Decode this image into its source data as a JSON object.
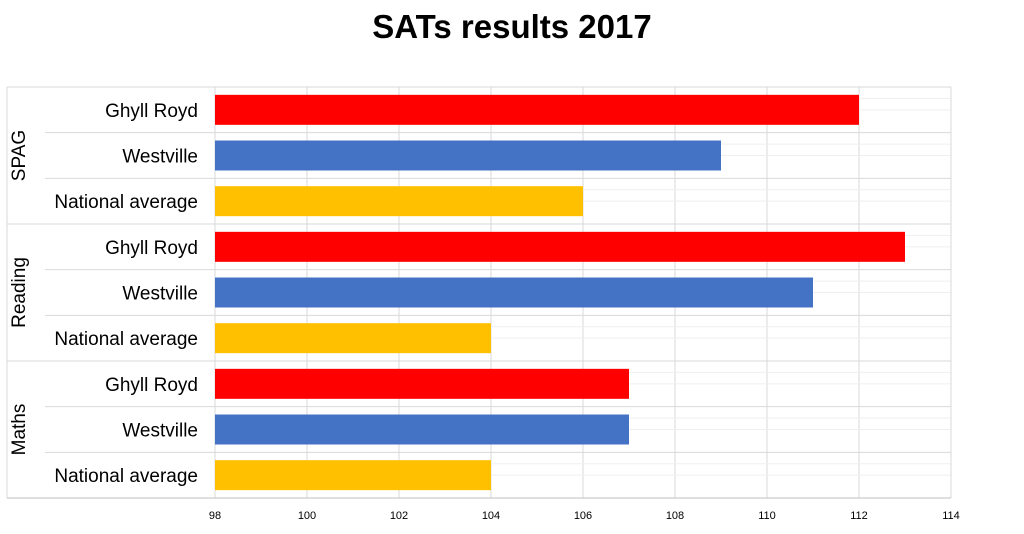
{
  "chart_data": {
    "type": "bar",
    "orientation": "horizontal",
    "title": "SATs results 2017",
    "xlim": [
      98,
      114
    ],
    "x_ticks": [
      "98",
      "100",
      "102",
      "104",
      "106",
      "108",
      "110",
      "112",
      "114"
    ],
    "grid": true,
    "groups": [
      {
        "name": "SPAG",
        "bars": [
          {
            "label": "Ghyll Royd",
            "value": 112,
            "color": "#ff0000"
          },
          {
            "label": "Westville",
            "value": 109,
            "color": "#4472c4"
          },
          {
            "label": "National average",
            "value": 106,
            "color": "#ffc000"
          }
        ]
      },
      {
        "name": "Reading",
        "bars": [
          {
            "label": "Ghyll Royd",
            "value": 113,
            "color": "#ff0000"
          },
          {
            "label": "Westville",
            "value": 111,
            "color": "#4472c4"
          },
          {
            "label": "National average",
            "value": 104,
            "color": "#ffc000"
          }
        ]
      },
      {
        "name": "Maths",
        "bars": [
          {
            "label": "Ghyll Royd",
            "value": 107,
            "color": "#ff0000"
          },
          {
            "label": "Westville",
            "value": 107,
            "color": "#4472c4"
          },
          {
            "label": "National average",
            "value": 104,
            "color": "#ffc000"
          }
        ]
      }
    ]
  }
}
